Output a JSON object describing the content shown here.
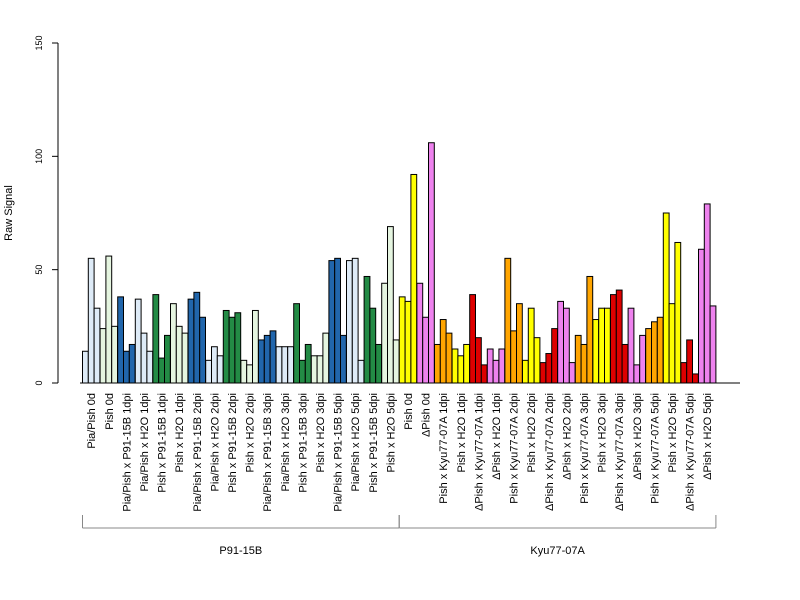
{
  "chart_data": {
    "type": "bar",
    "ylabel": "Raw Signal",
    "xlabel": "",
    "ylim": [
      0,
      150
    ],
    "yticks": [
      0,
      50,
      100,
      150
    ],
    "grid": false,
    "legend": "none",
    "groups": [
      {
        "name": "P91-15B",
        "first_category": 0,
        "last_category": 17
      },
      {
        "name": "Kyu77-07A",
        "first_category": 18,
        "last_category": 35
      }
    ],
    "categories": [
      {
        "label": "Pia/Pish 0d",
        "color": "#deebf7",
        "values": [
          14,
          55,
          33
        ]
      },
      {
        "label": "Pish 0d",
        "color": "#e5f5e0",
        "values": [
          24,
          56,
          25
        ]
      },
      {
        "label": "Pia/Pish x P91-15B 1dpi",
        "color": "#2166ac",
        "values": [
          38,
          14,
          17
        ]
      },
      {
        "label": "Pia/Pish x H2O 1dpi",
        "color": "#deebf7",
        "values": [
          37,
          22,
          14
        ]
      },
      {
        "label": "Pish x P91-15B 1dpi",
        "color": "#238b45",
        "values": [
          39,
          11,
          21
        ]
      },
      {
        "label": "Pish x H2O 1dpi",
        "color": "#e5f5e0",
        "values": [
          35,
          25,
          22
        ]
      },
      {
        "label": "Pia/Pish x P91-15B 2dpi",
        "color": "#2166ac",
        "values": [
          37,
          40,
          29
        ]
      },
      {
        "label": "Pia/Pish x H2O 2dpi",
        "color": "#deebf7",
        "values": [
          10,
          16,
          12
        ]
      },
      {
        "label": "Pish x P91-15B 2dpi",
        "color": "#238b45",
        "values": [
          32,
          29,
          31
        ]
      },
      {
        "label": "Pish x H2O 2dpi",
        "color": "#e5f5e0",
        "values": [
          10,
          8,
          32
        ]
      },
      {
        "label": "Pia/Pish x P91-15B 3dpi",
        "color": "#2166ac",
        "values": [
          19,
          21,
          23
        ]
      },
      {
        "label": "Pia/Pish x H2O 3dpi",
        "color": "#deebf7",
        "values": [
          16,
          16,
          16
        ]
      },
      {
        "label": "Pish x P91-15B 3dpi",
        "color": "#238b45",
        "values": [
          35,
          10,
          17
        ]
      },
      {
        "label": "Pish x H2O 3dpi",
        "color": "#e5f5e0",
        "values": [
          12,
          12,
          22
        ]
      },
      {
        "label": "Pia/Pish x P91-15B 5dpi",
        "color": "#2166ac",
        "values": [
          54,
          55,
          21
        ]
      },
      {
        "label": "Pia/Pish x H2O 5dpi",
        "color": "#deebf7",
        "values": [
          54,
          55,
          10
        ]
      },
      {
        "label": "Pish x P91-15B 5dpi",
        "color": "#238b45",
        "values": [
          47,
          33,
          17
        ]
      },
      {
        "label": "Pish x H2O 5dpi",
        "color": "#e5f5e0",
        "values": [
          44,
          69,
          19
        ]
      },
      {
        "label": "Pish 0d",
        "color": "#ffff00",
        "values": [
          38,
          36,
          92
        ]
      },
      {
        "label": "ΔPish 0d",
        "color": "#ee82ee",
        "values": [
          44,
          29,
          106
        ]
      },
      {
        "label": "Pish x Kyu77-07A 1dpi",
        "color": "#ffa500",
        "values": [
          17,
          28,
          22
        ]
      },
      {
        "label": "Pish x H2O 1dpi",
        "color": "#ffff00",
        "values": [
          15,
          12,
          17
        ]
      },
      {
        "label": "ΔPish x Kyu77-07A 1dpi",
        "color": "#dd0000",
        "values": [
          39,
          20,
          8
        ]
      },
      {
        "label": "ΔPish x H2O 1dpi",
        "color": "#ee82ee",
        "values": [
          15,
          10,
          15
        ]
      },
      {
        "label": "Pish x Kyu77-07A 2dpi",
        "color": "#ffa500",
        "values": [
          55,
          23,
          35
        ]
      },
      {
        "label": "Pish x H2O 2dpi",
        "color": "#ffff00",
        "values": [
          10,
          33,
          20
        ]
      },
      {
        "label": "ΔPish x Kyu77-07A 2dpi",
        "color": "#dd0000",
        "values": [
          9,
          13,
          24
        ]
      },
      {
        "label": "ΔPish x H2O 2dpi",
        "color": "#ee82ee",
        "values": [
          36,
          33,
          9
        ]
      },
      {
        "label": "Pish x Kyu77-07A 3dpi",
        "color": "#ffa500",
        "values": [
          21,
          17,
          47
        ]
      },
      {
        "label": "Pish x H2O 3dpi",
        "color": "#ffff00",
        "values": [
          28,
          33,
          33
        ]
      },
      {
        "label": "ΔPish x Kyu77-07A 3dpi",
        "color": "#dd0000",
        "values": [
          39,
          41,
          17
        ]
      },
      {
        "label": "ΔPish x H2O 3dpi",
        "color": "#ee82ee",
        "values": [
          33,
          8,
          21
        ]
      },
      {
        "label": "Pish x Kyu77-07A 5dpi",
        "color": "#ffa500",
        "values": [
          24,
          27,
          29
        ]
      },
      {
        "label": "Pish x H2O 5dpi",
        "color": "#ffff00",
        "values": [
          75,
          35,
          62
        ]
      },
      {
        "label": "ΔPish x Kyu77-07A 5dpi",
        "color": "#dd0000",
        "values": [
          9,
          19,
          4
        ]
      },
      {
        "label": "ΔPish x H2O 5dpi",
        "color": "#ee82ee",
        "values": [
          59,
          79,
          34
        ]
      }
    ]
  }
}
